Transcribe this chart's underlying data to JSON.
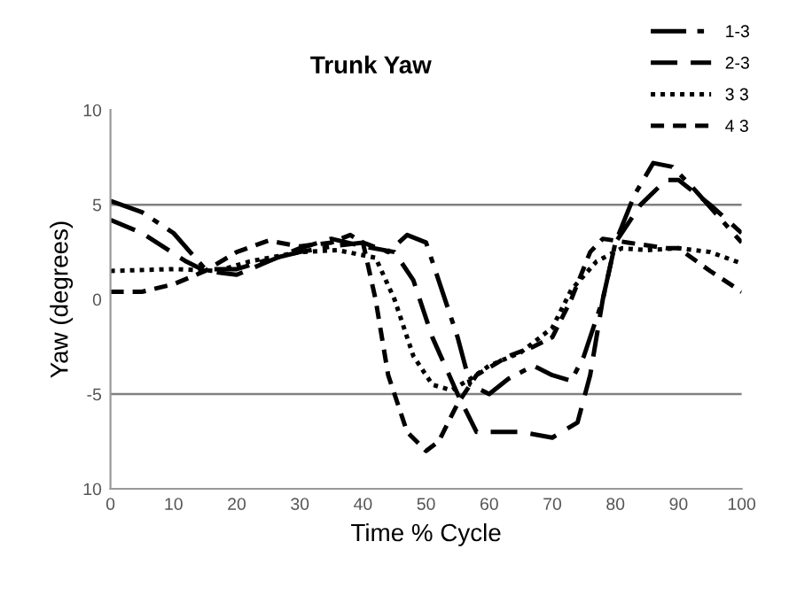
{
  "chart_data": {
    "type": "line",
    "title": "Trunk Yaw",
    "xlabel": "Time % Cycle",
    "ylabel": "Yaw (degrees)",
    "xlim": [
      0,
      100
    ],
    "xticks": [
      0,
      10,
      20,
      30,
      40,
      50,
      60,
      70,
      80,
      90,
      100
    ],
    "ylim": [
      -10,
      10
    ],
    "yticks": [
      {
        "value": -10,
        "label": "10"
      },
      -5,
      0,
      5,
      10
    ],
    "grid": false,
    "legend": "top right",
    "marker": "none",
    "ref_lines": [
      {
        "axis": "y",
        "value": 5,
        "color": "#808080"
      },
      {
        "axis": "y",
        "value": -5,
        "color": "#808080"
      }
    ],
    "series": [
      {
        "name": "1-3",
        "color": "#000000",
        "line_style": "dashdot",
        "x": [
          0,
          5,
          10,
          15,
          20,
          25,
          30,
          35,
          40,
          44,
          47,
          50,
          55,
          57,
          60,
          63,
          67,
          70,
          73,
          75,
          78,
          80,
          83,
          86,
          89,
          92,
          96,
          100
        ],
        "values": [
          5.2,
          4.6,
          3.5,
          1.6,
          1.6,
          2.1,
          2.5,
          2.8,
          3.0,
          2.5,
          3.4,
          3.0,
          -2.0,
          -4.5,
          -5.0,
          -4.2,
          -3.5,
          -4.0,
          -4.3,
          -3.0,
          0.0,
          3.0,
          5.5,
          7.2,
          7.0,
          6.0,
          4.5,
          3.0
        ]
      },
      {
        "name": "2-3",
        "color": "#000000",
        "line_style": "longdash",
        "x": [
          0,
          5,
          12,
          15,
          20,
          25,
          30,
          35,
          40,
          45,
          48,
          51,
          55,
          58,
          65,
          70,
          74,
          76,
          78,
          80,
          84,
          88,
          90,
          95,
          100
        ],
        "values": [
          4.2,
          3.5,
          2.0,
          1.5,
          1.3,
          2.0,
          2.7,
          3.2,
          2.8,
          2.5,
          1.0,
          -2.0,
          -5.0,
          -7.0,
          -7.0,
          -7.3,
          -6.5,
          -4.0,
          0.0,
          3.0,
          5.0,
          6.3,
          6.3,
          5.0,
          3.5
        ]
      },
      {
        "name": "3 3",
        "color": "#000000",
        "line_style": "dotted",
        "x": [
          0,
          10,
          17,
          22,
          30,
          36,
          42,
          45,
          48,
          51,
          54,
          57,
          60,
          65,
          70,
          73,
          77,
          81,
          85,
          90,
          95,
          100
        ],
        "values": [
          1.5,
          1.6,
          1.5,
          2.0,
          2.5,
          2.6,
          2.2,
          0.0,
          -3.0,
          -4.5,
          -4.8,
          -4.2,
          -3.5,
          -2.8,
          -1.5,
          0.5,
          2.0,
          2.7,
          2.6,
          2.7,
          2.5,
          1.9
        ]
      },
      {
        "name": "4 3",
        "color": "#000000",
        "line_style": "dashed",
        "x": [
          0,
          5,
          10,
          15,
          20,
          25,
          30,
          35,
          38,
          40,
          42,
          44,
          47,
          50,
          52,
          55,
          58,
          63,
          67,
          70,
          73,
          76,
          78,
          82,
          88,
          90,
          95,
          100
        ],
        "values": [
          0.4,
          0.4,
          0.8,
          1.5,
          2.5,
          3.1,
          2.8,
          3.0,
          3.4,
          3.0,
          0.0,
          -4.0,
          -7.0,
          -8.0,
          -7.5,
          -5.5,
          -4.0,
          -3.0,
          -2.5,
          -2.0,
          0.0,
          2.5,
          3.2,
          3.0,
          2.7,
          2.7,
          1.5,
          0.4
        ]
      }
    ]
  }
}
